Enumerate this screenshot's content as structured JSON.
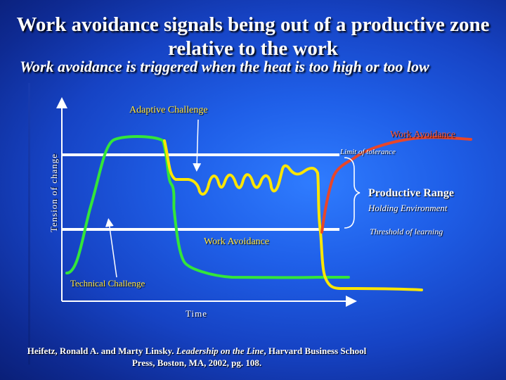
{
  "title": "Work avoidance signals being out of a productive zone relative to the work",
  "subtitle": "Work avoidance is triggered when the heat is too high or too low",
  "diagram": {
    "y_axis_label": "Tension of change",
    "x_axis_label": "Time",
    "adaptive_challenge": "Adaptive Challenge",
    "technical_challenge": "Technical Challenge",
    "work_avoidance_top": "Work Avoidance",
    "work_avoidance_mid": "Work Avoidance",
    "limit_of_tolerance": "Limit of tolerance",
    "productive_range": "Productive Range",
    "holding_environment": "Holding Environment",
    "threshold_of_learning": "Threshold of learning",
    "colors": {
      "green_curve": "#33e63a",
      "yellow_curve": "#ffe600",
      "red_curve": "#e8462a",
      "limit_lines": "#ffffff"
    }
  },
  "citation": {
    "authors": "Heifetz, Ronald A. and Marty Linsky. ",
    "book": "Leadership on the Line",
    "publisher": ", Harvard Business School",
    "line2": "Press, Boston, MA, 2002, pg. 108."
  }
}
